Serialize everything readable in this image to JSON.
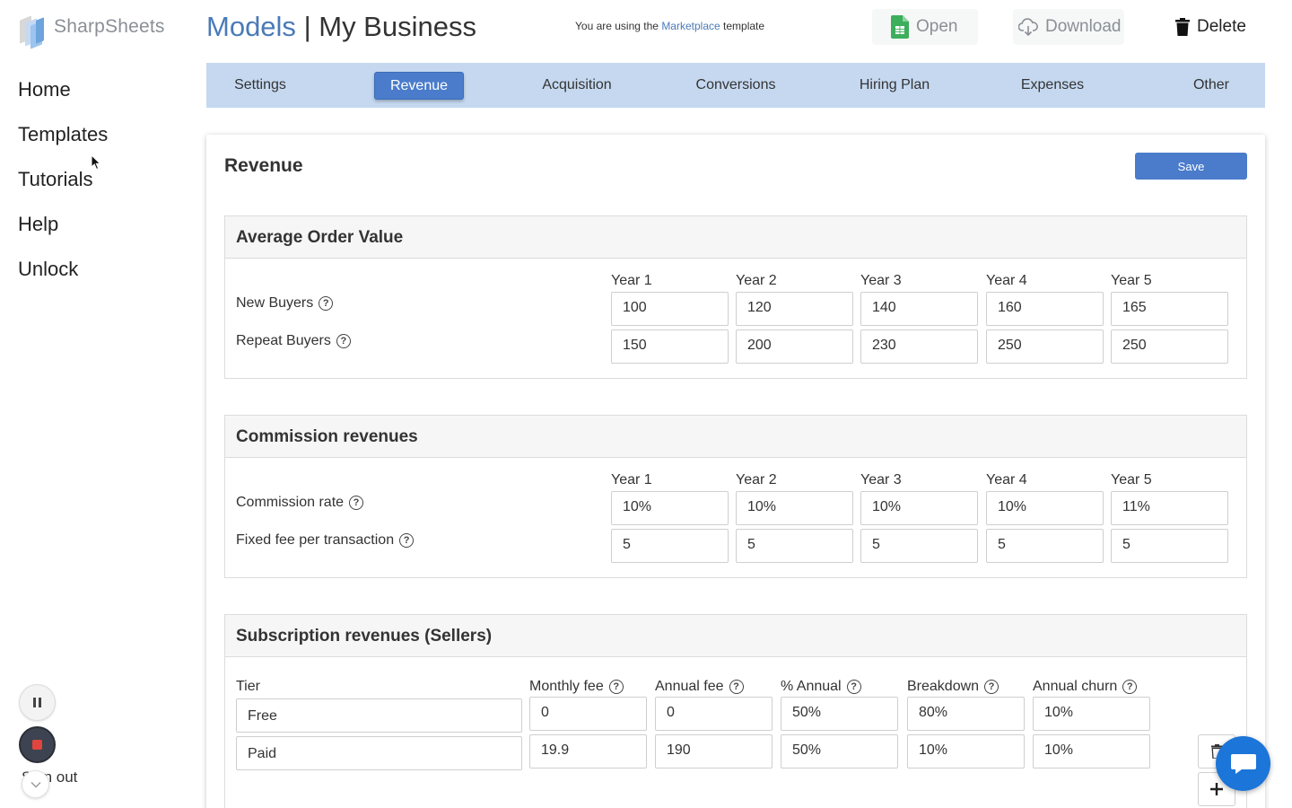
{
  "brand": {
    "name": "SharpSheets",
    "colors": [
      "#c7d9f2",
      "#9cc4ee",
      "#6ea4dd",
      "#d8d8d8"
    ]
  },
  "sidebar": {
    "items": [
      {
        "label": "Home"
      },
      {
        "label": "Templates"
      },
      {
        "label": "Tutorials"
      },
      {
        "label": "Help"
      },
      {
        "label": "Unlock"
      }
    ],
    "signout_label": "Sign out"
  },
  "header": {
    "title_models": "Models",
    "title_separator": "|",
    "title_business": "My Business",
    "template_note_prefix": "You are using the",
    "template_name": "Marketplace",
    "template_note_suffix": "template",
    "open_label": "Open",
    "download_label": "Download",
    "delete_label": "Delete"
  },
  "tabs": [
    {
      "label": "Settings",
      "active": false
    },
    {
      "label": "Revenue",
      "active": true
    },
    {
      "label": "Acquisition",
      "active": false
    },
    {
      "label": "Conversions",
      "active": false
    },
    {
      "label": "Hiring Plan",
      "active": false
    },
    {
      "label": "Expenses",
      "active": false
    },
    {
      "label": "Other",
      "active": false
    }
  ],
  "panel": {
    "title": "Revenue",
    "save_label": "Save"
  },
  "aov": {
    "title": "Average Order Value",
    "years": [
      "Year 1",
      "Year 2",
      "Year 3",
      "Year 4",
      "Year 5"
    ],
    "rows": [
      {
        "label": "New Buyers",
        "values": [
          "100",
          "120",
          "140",
          "160",
          "165"
        ]
      },
      {
        "label": "Repeat Buyers",
        "values": [
          "150",
          "200",
          "230",
          "250",
          "250"
        ]
      }
    ]
  },
  "commission": {
    "title": "Commission revenues",
    "years": [
      "Year 1",
      "Year 2",
      "Year 3",
      "Year 4",
      "Year 5"
    ],
    "rows": [
      {
        "label": "Commission rate",
        "values": [
          "10%",
          "10%",
          "10%",
          "10%",
          "11%"
        ]
      },
      {
        "label": "Fixed fee per transaction",
        "values": [
          "5",
          "5",
          "5",
          "5",
          "5"
        ]
      }
    ]
  },
  "subscription": {
    "title": "Subscription revenues (Sellers)",
    "columns": [
      "Tier",
      "Monthly fee",
      "Annual fee",
      "% Annual",
      "Breakdown",
      "Annual churn"
    ],
    "rows": [
      {
        "tier": "Free",
        "monthly_fee": "0",
        "annual_fee": "0",
        "pct_annual": "50%",
        "breakdown": "80%",
        "annual_churn": "10%"
      },
      {
        "tier": "Paid",
        "monthly_fee": "19.9",
        "annual_fee": "190",
        "pct_annual": "50%",
        "breakdown": "10%",
        "annual_churn": "10%"
      }
    ]
  },
  "icons": {
    "open": "spreadsheet-icon",
    "download": "cloud-download-icon",
    "delete": "trash-icon",
    "help": "question-circle-icon",
    "chat": "chat-bubble-icon",
    "add": "plus-icon"
  },
  "accent": "#4a7ccb",
  "tabbar_bg": "#c5d8f0"
}
